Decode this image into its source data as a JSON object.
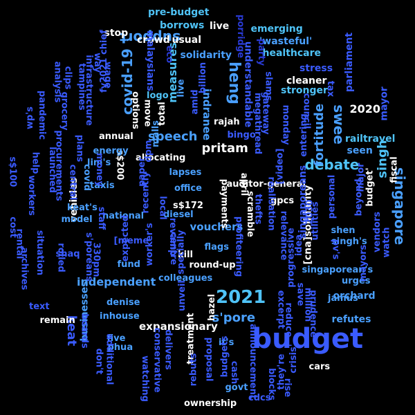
{
  "palette": {
    "dark": "#2a3bd6",
    "mid": "#3a5bff",
    "light": "#4aa0ff",
    "sky": "#4fc3f7",
    "white": "#ffffff"
  },
  "words": [
    {
      "t": "budget",
      "c": "mid"
    },
    {
      "t": "2021",
      "c": "sky"
    },
    {
      "t": "debate",
      "c": "sky"
    },
    {
      "t": "singapore",
      "c": "light"
    },
    {
      "t": "heng",
      "c": "light"
    },
    {
      "t": "pritam",
      "c": "white"
    },
    {
      "t": "speech",
      "c": "light"
    },
    {
      "t": "covid-19",
      "c": "light"
    },
    {
      "t": "swee",
      "c": "light"
    },
    {
      "t": "keat",
      "c": "mid"
    },
    {
      "t": "independent",
      "c": "light"
    },
    {
      "t": "s'pore",
      "c": "light"
    },
    {
      "t": "expansionary",
      "c": "white"
    },
    {
      "t": "support",
      "c": "light"
    },
    {
      "t": "vouchers",
      "c": "light"
    },
    {
      "t": "fortitude",
      "c": "light"
    },
    {
      "t": "singh",
      "c": "sky"
    },
    {
      "t": "2020",
      "c": "white"
    },
    {
      "t": "parliament",
      "c": "mid"
    },
    {
      "t": "measures",
      "c": "sky"
    },
    {
      "t": "businesses",
      "c": "light"
    },
    {
      "t": "vehicles",
      "c": "white"
    },
    {
      "t": "pre-budget",
      "c": "sky"
    },
    {
      "t": "borrows",
      "c": "sky"
    },
    {
      "t": "stop",
      "c": "white"
    },
    {
      "t": "crowd",
      "c": "white"
    },
    {
      "t": "usual",
      "c": "white"
    },
    {
      "t": "live",
      "c": "white"
    },
    {
      "t": "porridge",
      "c": "dark"
    },
    {
      "t": "emerging",
      "c": "sky"
    },
    {
      "t": "'wasteful'",
      "c": "light"
    },
    {
      "t": "healthcare",
      "c": "sky"
    },
    {
      "t": "party",
      "c": "dark"
    },
    {
      "t": "solidarity",
      "c": "light"
    },
    {
      "t": "eco",
      "c": "dark"
    },
    {
      "t": "malaysians",
      "c": "mid"
    },
    {
      "t": "understandable",
      "c": "mid"
    },
    {
      "t": "slams",
      "c": "mid"
    },
    {
      "t": "stress",
      "c": "mid"
    },
    {
      "t": "cleaner",
      "c": "white"
    },
    {
      "t": "stronger",
      "c": "sky"
    },
    {
      "t": "indranee",
      "c": "light"
    },
    {
      "t": "rajah",
      "c": "white"
    },
    {
      "t": "bingo",
      "c": "mid"
    },
    {
      "t": "mayor",
      "c": "mid"
    },
    {
      "t": "railtravel",
      "c": "sky"
    },
    {
      "t": "seen",
      "c": "light"
    },
    {
      "t": "fiscal",
      "c": "white"
    },
    {
      "t": "major",
      "c": "mid"
    },
    {
      "t": "budget'",
      "c": "white"
    },
    {
      "t": "auditor-general",
      "c": "white"
    },
    {
      "t": "april",
      "c": "white"
    },
    {
      "t": "s$172",
      "c": "white"
    },
    {
      "t": "gpcs",
      "c": "white"
    },
    {
      "t": "scramble",
      "c": "white"
    },
    {
      "t": "allocating",
      "c": "white"
    },
    {
      "t": "s$200",
      "c": "white"
    },
    {
      "t": "annual",
      "c": "white"
    },
    {
      "t": "total",
      "c": "white"
    },
    {
      "t": "options",
      "c": "white"
    },
    {
      "t": "kill",
      "c": "white"
    },
    {
      "t": "round-up",
      "c": "white"
    },
    {
      "t": "remain",
      "c": "white"
    },
    {
      "t": "hazel",
      "c": "white"
    },
    {
      "t": "treatment",
      "c": "white"
    },
    {
      "t": "ownership",
      "c": "white"
    },
    {
      "t": "cars",
      "c": "white"
    },
    {
      "t": "[cna]solidarity",
      "c": "white"
    },
    {
      "t": "payments",
      "c": "white"
    },
    {
      "t": "realisation",
      "c": "mid"
    },
    {
      "t": "thefts",
      "c": "mid"
    },
    {
      "t": "relevance",
      "c": "mid"
    },
    {
      "t": "profiteering",
      "c": "mid"
    },
    {
      "t": "singaporeans",
      "c": "mid"
    },
    {
      "t": "progressive",
      "c": "mid"
    },
    {
      "t": "singaporean's",
      "c": "light"
    },
    {
      "t": "urges",
      "c": "light"
    },
    {
      "t": "mayors",
      "c": "mid"
    },
    {
      "t": "vendors",
      "c": "mid"
    },
    {
      "t": "watch",
      "c": "mid"
    },
    {
      "t": "orchard",
      "c": "light"
    },
    {
      "t": "refutes",
      "c": "light"
    },
    {
      "t": "jamus",
      "c": "light"
    },
    {
      "t": "shen",
      "c": "light"
    },
    {
      "t": "singh's",
      "c": "light"
    },
    {
      "t": "pv's",
      "c": "mid"
    },
    {
      "t": "beyond",
      "c": "mid"
    },
    {
      "t": "personal",
      "c": "mid"
    },
    {
      "t": "idea",
      "c": "mid"
    },
    {
      "t": "2030",
      "c": "mid"
    },
    {
      "t": "utilities",
      "c": "mid"
    },
    {
      "t": "flags",
      "c": "light"
    },
    {
      "t": "colleagues",
      "c": "light"
    },
    {
      "t": "fund",
      "c": "light"
    },
    {
      "t": "office",
      "c": "light"
    },
    {
      "t": "lapses",
      "c": "light"
    },
    {
      "t": "diesel",
      "c": "light"
    },
    {
      "t": "national",
      "c": "light"
    },
    {
      "t": "taxis",
      "c": "light"
    },
    {
      "t": "keat's",
      "c": "light"
    },
    {
      "t": "model",
      "c": "light"
    },
    {
      "t": "energy",
      "c": "light"
    },
    {
      "t": "lim's",
      "c": "light"
    },
    {
      "t": "covid",
      "c": "light"
    },
    {
      "t": "money",
      "c": "mid"
    },
    {
      "t": "plans",
      "c": "mid"
    },
    {
      "t": "grocery",
      "c": "mid"
    },
    {
      "t": "procurements",
      "c": "mid"
    },
    {
      "t": "launched",
      "c": "mid"
    },
    {
      "t": "pandemic",
      "c": "mid"
    },
    {
      "t": "help",
      "c": "mid"
    },
    {
      "t": "wp's",
      "c": "mid"
    },
    {
      "t": "s$100",
      "c": "mid"
    },
    {
      "t": "cost",
      "c": "mid"
    },
    {
      "t": "rental",
      "c": "mid"
    },
    {
      "t": "archives",
      "c": "mid"
    },
    {
      "t": "text",
      "c": "mid"
    },
    {
      "t": "denise",
      "c": "light"
    },
    {
      "t": "inhouse",
      "c": "light"
    },
    {
      "t": "five",
      "c": "light"
    },
    {
      "t": "phua",
      "c": "light"
    },
    {
      "t": "additional",
      "c": "mid"
    },
    {
      "t": "watching",
      "c": "mid"
    },
    {
      "t": "conservative",
      "c": "mid"
    },
    {
      "t": "delivers",
      "c": "mid"
    },
    {
      "t": "govt",
      "c": "light"
    },
    {
      "t": "it's",
      "c": "light"
    },
    {
      "t": "budgets",
      "c": "mid"
    },
    {
      "t": "proposal",
      "c": "mid"
    },
    {
      "t": "cash",
      "c": "mid"
    },
    {
      "t": "announcement",
      "c": "mid"
    },
    {
      "t": "blocks",
      "c": "mid"
    },
    {
      "t": "cdcs",
      "c": "mid"
    },
    {
      "t": "rise",
      "c": "mid"
    },
    {
      "t": "they're",
      "c": "mid"
    },
    {
      "t": "crisis'",
      "c": "mid"
    },
    {
      "t": "reduce",
      "c": "mid"
    },
    {
      "t": "million",
      "c": "mid"
    },
    {
      "t": "save",
      "c": "mid"
    },
    {
      "t": "prudence",
      "c": "mid"
    },
    {
      "t": "excerpt",
      "c": "mid"
    },
    {
      "t": "analysis",
      "c": "mid"
    },
    {
      "t": "clips",
      "c": "mid"
    },
    {
      "t": "infrastructure",
      "c": "mid"
    },
    {
      "t": "way",
      "c": "mid"
    },
    {
      "t": "tampines",
      "c": "mid"
    },
    {
      "t": "fy2021 chief",
      "c": "mid"
    },
    {
      "t": "wage",
      "c": "mid"
    },
    {
      "t": "logo",
      "c": "sky"
    },
    {
      "t": "live",
      "c": "light"
    },
    {
      "t": "billion",
      "c": "mid"
    },
    {
      "t": "amid",
      "c": "mid"
    },
    {
      "t": "move",
      "c": "white"
    },
    {
      "t": "malls",
      "c": "light"
    },
    {
      "t": "gateway",
      "c": "mid"
    },
    {
      "t": "megathread",
      "c": "mid"
    },
    {
      "t": "monday",
      "c": "mid"
    },
    {
      "t": "council",
      "c": "mid"
    },
    {
      "t": "entering",
      "c": "mid"
    },
    {
      "t": "tax",
      "c": "mid"
    },
    {
      "t": "[video]",
      "c": "mid"
    },
    {
      "t": "staff",
      "c": "mid"
    },
    {
      "t": "expected",
      "c": "mid"
    },
    {
      "t": "[meme",
      "c": "mid"
    },
    {
      "t": "330pm",
      "c": "mid"
    },
    {
      "t": "s'poreans",
      "c": "mid"
    },
    {
      "t": "worker's",
      "c": "mid"
    },
    {
      "t": "specially",
      "c": "mid"
    },
    {
      "t": "unveil",
      "c": "mid"
    },
    {
      "t": "rebuts",
      "c": "mid"
    },
    {
      "t": "revamp",
      "c": "mid"
    },
    {
      "t": "centre",
      "c": "mid"
    },
    {
      "t": "local",
      "c": "mid"
    },
    {
      "t": "recently",
      "c": "mid"
    },
    {
      "t": "paper",
      "c": "mid"
    },
    {
      "t": "dpm",
      "c": "mid"
    },
    {
      "t": "workers",
      "c": "mid"
    },
    {
      "t": "situation",
      "c": "mid"
    },
    {
      "t": "rolled",
      "c": "mid"
    },
    {
      "t": "shaq",
      "c": "mid"
    },
    {
      "t": "central",
      "c": "mid"
    },
    {
      "t": "boards",
      "c": "mid"
    },
    {
      "t": "don't",
      "c": "mid"
    }
  ]
}
